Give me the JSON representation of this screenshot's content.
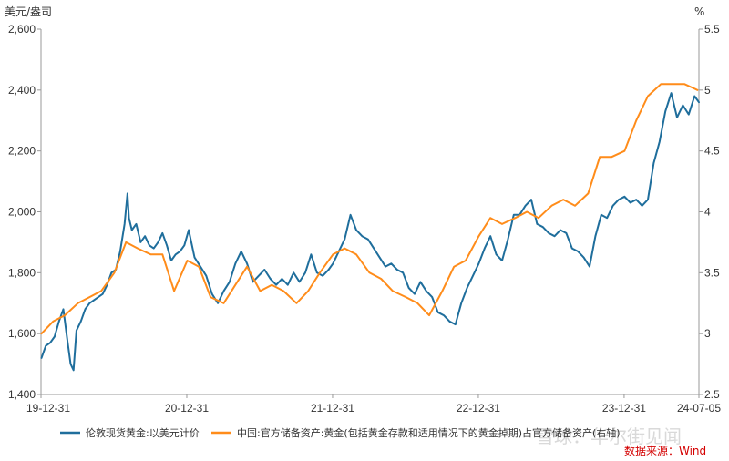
{
  "chart_data": {
    "type": "line",
    "title": "",
    "ylabel_left": "美元/盎司",
    "ylabel_right": "%",
    "ylim_left": [
      1400,
      2600
    ],
    "ylim_right": [
      2.5,
      5.5
    ],
    "yticks_left": [
      "1,400",
      "1,600",
      "1,800",
      "2,000",
      "2,200",
      "2,400",
      "2,600"
    ],
    "yticks_right": [
      "2.5",
      "3",
      "3.5",
      "4",
      "4.5",
      "5",
      "5.5"
    ],
    "x_tick_labels": [
      "19-12-31",
      "20-12-31",
      "21-12-31",
      "22-12-31",
      "23-12-31",
      "24-07-05"
    ],
    "x_tick_positions": [
      2019.997,
      2020.997,
      2021.997,
      2022.997,
      2023.997,
      2024.51
    ],
    "xlim": [
      2019.997,
      2024.51
    ],
    "grid": false,
    "legend_position": "bottom",
    "series": [
      {
        "name": "伦敦现货黄金:以美元计价",
        "axis": "left",
        "color": "#1f6e9c",
        "x": [
          2020.0,
          2020.03,
          2020.06,
          2020.09,
          2020.12,
          2020.15,
          2020.18,
          2020.2,
          2020.22,
          2020.24,
          2020.27,
          2020.3,
          2020.33,
          2020.36,
          2020.39,
          2020.42,
          2020.45,
          2020.48,
          2020.51,
          2020.54,
          2020.57,
          2020.59,
          2020.6,
          2020.62,
          2020.65,
          2020.68,
          2020.71,
          2020.74,
          2020.77,
          2020.8,
          2020.83,
          2020.86,
          2020.89,
          2020.92,
          2020.95,
          2020.98,
          2021.01,
          2021.05,
          2021.09,
          2021.13,
          2021.17,
          2021.21,
          2021.25,
          2021.29,
          2021.33,
          2021.37,
          2021.41,
          2021.45,
          2021.49,
          2021.53,
          2021.57,
          2021.61,
          2021.65,
          2021.69,
          2021.73,
          2021.77,
          2021.81,
          2021.85,
          2021.89,
          2021.93,
          2021.97,
          2022.0,
          2022.04,
          2022.08,
          2022.12,
          2022.16,
          2022.2,
          2022.24,
          2022.28,
          2022.32,
          2022.36,
          2022.4,
          2022.44,
          2022.48,
          2022.52,
          2022.56,
          2022.6,
          2022.64,
          2022.68,
          2022.72,
          2022.76,
          2022.8,
          2022.84,
          2022.88,
          2022.92,
          2022.96,
          2023.0,
          2023.04,
          2023.08,
          2023.12,
          2023.16,
          2023.2,
          2023.24,
          2023.28,
          2023.32,
          2023.36,
          2023.4,
          2023.44,
          2023.48,
          2023.52,
          2023.56,
          2023.6,
          2023.64,
          2023.68,
          2023.72,
          2023.76,
          2023.8,
          2023.84,
          2023.88,
          2023.92,
          2023.96,
          2024.0,
          2024.04,
          2024.08,
          2024.12,
          2024.16,
          2024.2,
          2024.24,
          2024.28,
          2024.32,
          2024.36,
          2024.4,
          2024.44,
          2024.48,
          2024.51
        ],
        "values": [
          1520,
          1560,
          1570,
          1590,
          1640,
          1680,
          1570,
          1500,
          1480,
          1610,
          1640,
          1680,
          1700,
          1710,
          1720,
          1730,
          1760,
          1800,
          1810,
          1870,
          1960,
          2060,
          1980,
          1940,
          1960,
          1900,
          1920,
          1890,
          1880,
          1900,
          1930,
          1890,
          1840,
          1860,
          1870,
          1890,
          1940,
          1850,
          1820,
          1790,
          1730,
          1700,
          1740,
          1770,
          1830,
          1870,
          1830,
          1770,
          1790,
          1810,
          1780,
          1760,
          1780,
          1760,
          1800,
          1770,
          1800,
          1860,
          1800,
          1790,
          1810,
          1830,
          1870,
          1910,
          1990,
          1940,
          1920,
          1910,
          1880,
          1850,
          1820,
          1830,
          1810,
          1800,
          1750,
          1730,
          1770,
          1740,
          1720,
          1670,
          1660,
          1640,
          1630,
          1700,
          1750,
          1790,
          1830,
          1880,
          1920,
          1860,
          1840,
          1910,
          1990,
          1990,
          2020,
          2040,
          1960,
          1950,
          1930,
          1920,
          1940,
          1930,
          1880,
          1870,
          1850,
          1820,
          1920,
          1990,
          1980,
          2020,
          2040,
          2050,
          2030,
          2040,
          2020,
          2040,
          2160,
          2230,
          2330,
          2390,
          2310,
          2350,
          2320,
          2380,
          2360
        ],
        "line_width": 2
      },
      {
        "name": "中国:官方储备资产:黄金(包括黄金存款和适用情况下的黄金掉期)占官方储备资产(右轴)",
        "axis": "right",
        "color": "#ff8c1a",
        "x": [
          2020.0,
          2020.08,
          2020.16,
          2020.25,
          2020.33,
          2020.41,
          2020.5,
          2020.58,
          2020.66,
          2020.75,
          2020.83,
          2020.91,
          2021.0,
          2021.08,
          2021.16,
          2021.25,
          2021.33,
          2021.41,
          2021.5,
          2021.58,
          2021.66,
          2021.75,
          2021.83,
          2021.91,
          2022.0,
          2022.08,
          2022.16,
          2022.25,
          2022.33,
          2022.41,
          2022.5,
          2022.58,
          2022.66,
          2022.75,
          2022.83,
          2022.91,
          2023.0,
          2023.08,
          2023.16,
          2023.25,
          2023.33,
          2023.41,
          2023.5,
          2023.58,
          2023.66,
          2023.75,
          2023.83,
          2023.91,
          2024.0,
          2024.08,
          2024.16,
          2024.25,
          2024.33,
          2024.41,
          2024.5
        ],
        "values": [
          3.0,
          3.1,
          3.15,
          3.25,
          3.3,
          3.35,
          3.5,
          3.75,
          3.7,
          3.65,
          3.65,
          3.35,
          3.6,
          3.55,
          3.3,
          3.25,
          3.4,
          3.55,
          3.35,
          3.4,
          3.35,
          3.25,
          3.35,
          3.5,
          3.65,
          3.7,
          3.65,
          3.5,
          3.45,
          3.35,
          3.3,
          3.25,
          3.15,
          3.35,
          3.55,
          3.6,
          3.8,
          3.95,
          3.9,
          3.95,
          4.0,
          3.95,
          4.05,
          4.1,
          4.05,
          4.15,
          4.45,
          4.45,
          4.5,
          4.75,
          4.95,
          5.05,
          5.05,
          5.05,
          5.0
        ],
        "line_width": 2
      }
    ],
    "source": "数据来源：Wind",
    "watermark": "雪球：华尔街见闻"
  }
}
